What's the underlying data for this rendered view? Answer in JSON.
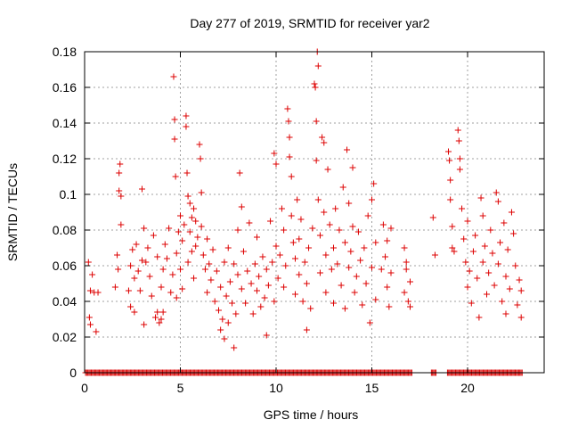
{
  "chart_data": {
    "type": "scatter",
    "title": "Day 277 of 2019, SRMTID for receiver yar2",
    "xlabel": "GPS time / hours",
    "ylabel": "SRMTID / TECUs",
    "xlim": [
      0,
      24
    ],
    "ylim": [
      0,
      0.18
    ],
    "xticks": [
      0,
      5,
      10,
      15,
      20
    ],
    "xtick_labels": [
      "0",
      "5",
      "10",
      "15",
      "20"
    ],
    "yticks": [
      0,
      0.02,
      0.04,
      0.06,
      0.08,
      0.1,
      0.12,
      0.14,
      0.16,
      0.18
    ],
    "ytick_labels": [
      "0",
      "0.02",
      "0.04",
      "0.06",
      "0.08",
      "0.1",
      "0.12",
      "0.14",
      "0.16",
      "0.18"
    ],
    "grid": true,
    "marker": "+",
    "marker_color": "#dd0000",
    "series": [
      {
        "name": "SRMTID",
        "points": [
          [
            0.2,
            0.062
          ],
          [
            0.25,
            0.031
          ],
          [
            0.3,
            0.027
          ],
          [
            0.3,
            0.046
          ],
          [
            0.4,
            0.055
          ],
          [
            0.5,
            0.045
          ],
          [
            0.6,
            0.023
          ],
          [
            0.7,
            0.045
          ],
          [
            1.6,
            0.048
          ],
          [
            1.7,
            0.066
          ],
          [
            1.75,
            0.058
          ],
          [
            1.8,
            0.102
          ],
          [
            1.8,
            0.112
          ],
          [
            1.85,
            0.117
          ],
          [
            1.9,
            0.099
          ],
          [
            1.9,
            0.083
          ],
          [
            2.3,
            0.046
          ],
          [
            2.4,
            0.06
          ],
          [
            2.4,
            0.037
          ],
          [
            2.5,
            0.069
          ],
          [
            2.6,
            0.053
          ],
          [
            2.6,
            0.034
          ],
          [
            2.7,
            0.072
          ],
          [
            2.8,
            0.057
          ],
          [
            2.9,
            0.046
          ],
          [
            3.0,
            0.103
          ],
          [
            3.0,
            0.063
          ],
          [
            3.1,
            0.081
          ],
          [
            3.1,
            0.027
          ],
          [
            3.2,
            0.062
          ],
          [
            3.3,
            0.07
          ],
          [
            3.4,
            0.054
          ],
          [
            3.5,
            0.043
          ],
          [
            3.6,
            0.077
          ],
          [
            3.7,
            0.031
          ],
          [
            3.8,
            0.034
          ],
          [
            3.8,
            0.065
          ],
          [
            3.9,
            0.028
          ],
          [
            4.0,
            0.03
          ],
          [
            4.0,
            0.048
          ],
          [
            4.1,
            0.034
          ],
          [
            4.1,
            0.058
          ],
          [
            4.2,
            0.072
          ],
          [
            4.3,
            0.064
          ],
          [
            4.4,
            0.081
          ],
          [
            4.5,
            0.045
          ],
          [
            4.6,
            0.055
          ],
          [
            4.65,
            0.166
          ],
          [
            4.7,
            0.142
          ],
          [
            4.7,
            0.131
          ],
          [
            4.75,
            0.11
          ],
          [
            4.8,
            0.067
          ],
          [
            4.8,
            0.042
          ],
          [
            4.9,
            0.079
          ],
          [
            5.0,
            0.088
          ],
          [
            5.0,
            0.058
          ],
          [
            5.1,
            0.074
          ],
          [
            5.1,
            0.047
          ],
          [
            5.2,
            0.083
          ],
          [
            5.3,
            0.144
          ],
          [
            5.3,
            0.138
          ],
          [
            5.35,
            0.112
          ],
          [
            5.4,
            0.099
          ],
          [
            5.4,
            0.062
          ],
          [
            5.5,
            0.095
          ],
          [
            5.5,
            0.079
          ],
          [
            5.6,
            0.087
          ],
          [
            5.6,
            0.068
          ],
          [
            5.7,
            0.092
          ],
          [
            5.7,
            0.053
          ],
          [
            5.8,
            0.085
          ],
          [
            5.8,
            0.071
          ],
          [
            5.9,
            0.076
          ],
          [
            6.0,
            0.128
          ],
          [
            6.05,
            0.12
          ],
          [
            6.1,
            0.101
          ],
          [
            6.1,
            0.082
          ],
          [
            6.2,
            0.066
          ],
          [
            6.3,
            0.058
          ],
          [
            6.4,
            0.045
          ],
          [
            6.4,
            0.075
          ],
          [
            6.5,
            0.061
          ],
          [
            6.6,
            0.052
          ],
          [
            6.7,
            0.069
          ],
          [
            6.8,
            0.04
          ],
          [
            6.9,
            0.057
          ],
          [
            7.0,
            0.035
          ],
          [
            7.1,
            0.024
          ],
          [
            7.1,
            0.048
          ],
          [
            7.2,
            0.03
          ],
          [
            7.3,
            0.019
          ],
          [
            7.3,
            0.062
          ],
          [
            7.4,
            0.043
          ],
          [
            7.5,
            0.07
          ],
          [
            7.5,
            0.028
          ],
          [
            7.6,
            0.051
          ],
          [
            7.7,
            0.039
          ],
          [
            7.8,
            0.014
          ],
          [
            7.8,
            0.061
          ],
          [
            7.9,
            0.033
          ],
          [
            8.0,
            0.08
          ],
          [
            8.0,
            0.055
          ],
          [
            8.1,
            0.112
          ],
          [
            8.2,
            0.093
          ],
          [
            8.2,
            0.047
          ],
          [
            8.3,
            0.068
          ],
          [
            8.4,
            0.039
          ],
          [
            8.5,
            0.057
          ],
          [
            8.6,
            0.084
          ],
          [
            8.7,
            0.05
          ],
          [
            8.8,
            0.033
          ],
          [
            8.9,
            0.061
          ],
          [
            9.0,
            0.046
          ],
          [
            9.0,
            0.076
          ],
          [
            9.1,
            0.054
          ],
          [
            9.2,
            0.037
          ],
          [
            9.3,
            0.065
          ],
          [
            9.4,
            0.042
          ],
          [
            9.5,
            0.058
          ],
          [
            9.5,
            0.021
          ],
          [
            9.6,
            0.049
          ],
          [
            9.7,
            0.085
          ],
          [
            9.8,
            0.062
          ],
          [
            9.9,
            0.04
          ],
          [
            9.9,
            0.123
          ],
          [
            10.0,
            0.117
          ],
          [
            10.0,
            0.071
          ],
          [
            10.1,
            0.053
          ],
          [
            10.2,
            0.066
          ],
          [
            10.3,
            0.092
          ],
          [
            10.4,
            0.048
          ],
          [
            10.4,
            0.08
          ],
          [
            10.5,
            0.06
          ],
          [
            10.6,
            0.148
          ],
          [
            10.65,
            0.141
          ],
          [
            10.7,
            0.132
          ],
          [
            10.7,
            0.121
          ],
          [
            10.8,
            0.11
          ],
          [
            10.8,
            0.088
          ],
          [
            10.9,
            0.073
          ],
          [
            11.0,
            0.064
          ],
          [
            11.0,
            0.044
          ],
          [
            11.1,
            0.097
          ],
          [
            11.2,
            0.075
          ],
          [
            11.2,
            0.055
          ],
          [
            11.3,
            0.086
          ],
          [
            11.4,
            0.04
          ],
          [
            11.5,
            0.062
          ],
          [
            11.6,
            0.024
          ],
          [
            11.6,
            0.05
          ],
          [
            11.7,
            0.07
          ],
          [
            11.8,
            0.036
          ],
          [
            11.9,
            0.081
          ],
          [
            12.0,
            0.162
          ],
          [
            12.05,
            0.16
          ],
          [
            12.1,
            0.141
          ],
          [
            12.1,
            0.119
          ],
          [
            12.15,
            0.18
          ],
          [
            12.2,
            0.172
          ],
          [
            12.2,
            0.097
          ],
          [
            12.3,
            0.077
          ],
          [
            12.3,
            0.056
          ],
          [
            12.4,
            0.132
          ],
          [
            12.5,
            0.129
          ],
          [
            12.5,
            0.09
          ],
          [
            12.6,
            0.066
          ],
          [
            12.6,
            0.045
          ],
          [
            12.7,
            0.114
          ],
          [
            12.8,
            0.083
          ],
          [
            12.9,
            0.058
          ],
          [
            13.0,
            0.07
          ],
          [
            13.0,
            0.039
          ],
          [
            13.1,
            0.092
          ],
          [
            13.2,
            0.061
          ],
          [
            13.3,
            0.08
          ],
          [
            13.4,
            0.049
          ],
          [
            13.5,
            0.104
          ],
          [
            13.6,
            0.073
          ],
          [
            13.6,
            0.036
          ],
          [
            13.7,
            0.125
          ],
          [
            13.8,
            0.095
          ],
          [
            13.8,
            0.059
          ],
          [
            13.9,
            0.068
          ],
          [
            14.0,
            0.115
          ],
          [
            14.0,
            0.082
          ],
          [
            14.1,
            0.045
          ],
          [
            14.2,
            0.054
          ],
          [
            14.3,
            0.079
          ],
          [
            14.4,
            0.063
          ],
          [
            14.5,
            0.038
          ],
          [
            14.6,
            0.07
          ],
          [
            14.7,
            0.05
          ],
          [
            14.8,
            0.088
          ],
          [
            14.9,
            0.028
          ],
          [
            15.0,
            0.059
          ],
          [
            15.0,
            0.097
          ],
          [
            15.1,
            0.106
          ],
          [
            15.2,
            0.073
          ],
          [
            15.2,
            0.041
          ],
          [
            15.5,
            0.058
          ],
          [
            15.6,
            0.083
          ],
          [
            15.7,
            0.065
          ],
          [
            15.8,
            0.048
          ],
          [
            15.8,
            0.074
          ],
          [
            15.9,
            0.037
          ],
          [
            16.0,
            0.081
          ],
          [
            16.0,
            0.056
          ],
          [
            16.7,
            0.07
          ],
          [
            16.7,
            0.045
          ],
          [
            16.8,
            0.058
          ],
          [
            16.8,
            0.062
          ],
          [
            16.9,
            0.04
          ],
          [
            17.0,
            0.051
          ],
          [
            17.0,
            0.037
          ],
          [
            18.2,
            0.087
          ],
          [
            18.3,
            0.066
          ],
          [
            19.0,
            0.124
          ],
          [
            19.05,
            0.119
          ],
          [
            19.1,
            0.108
          ],
          [
            19.1,
            0.097
          ],
          [
            19.2,
            0.082
          ],
          [
            19.2,
            0.07
          ],
          [
            19.3,
            0.068
          ],
          [
            19.5,
            0.136
          ],
          [
            19.55,
            0.13
          ],
          [
            19.6,
            0.12
          ],
          [
            19.6,
            0.114
          ],
          [
            19.7,
            0.092
          ],
          [
            19.8,
            0.075
          ],
          [
            19.9,
            0.062
          ],
          [
            20.0,
            0.048
          ],
          [
            20.0,
            0.085
          ],
          [
            20.1,
            0.057
          ],
          [
            20.2,
            0.039
          ],
          [
            20.3,
            0.068
          ],
          [
            20.4,
            0.077
          ],
          [
            20.5,
            0.053
          ],
          [
            20.6,
            0.031
          ],
          [
            20.7,
            0.098
          ],
          [
            20.8,
            0.088
          ],
          [
            20.8,
            0.062
          ],
          [
            20.9,
            0.071
          ],
          [
            21.0,
            0.044
          ],
          [
            21.1,
            0.056
          ],
          [
            21.2,
            0.08
          ],
          [
            21.3,
            0.067
          ],
          [
            21.4,
            0.049
          ],
          [
            21.5,
            0.101
          ],
          [
            21.6,
            0.096
          ],
          [
            21.6,
            0.061
          ],
          [
            21.7,
            0.073
          ],
          [
            21.8,
            0.04
          ],
          [
            21.9,
            0.084
          ],
          [
            22.0,
            0.054
          ],
          [
            22.0,
            0.033
          ],
          [
            22.1,
            0.069
          ],
          [
            22.2,
            0.047
          ],
          [
            22.3,
            0.09
          ],
          [
            22.4,
            0.078
          ],
          [
            22.5,
            0.06
          ],
          [
            22.6,
            0.038
          ],
          [
            22.7,
            0.052
          ],
          [
            22.8,
            0.046
          ],
          [
            22.8,
            0.031
          ]
        ]
      },
      {
        "name": "zero-values",
        "x_start": 0.05,
        "x_end": 22.9,
        "x_step": 0.06,
        "y": 0,
        "gaps": [
          [
            17.1,
            18.1
          ],
          [
            18.4,
            18.9
          ]
        ]
      }
    ]
  }
}
